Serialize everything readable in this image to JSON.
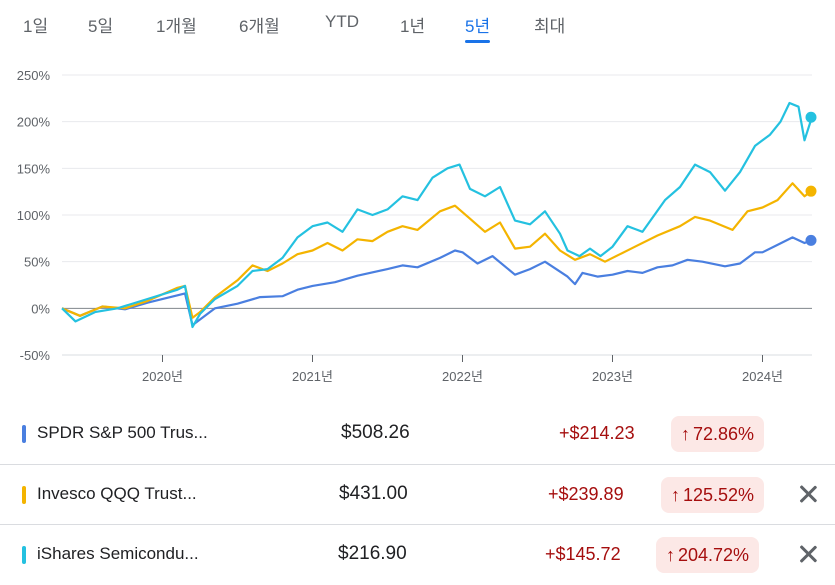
{
  "tabs": [
    {
      "label": "1일"
    },
    {
      "label": "5일"
    },
    {
      "label": "1개월"
    },
    {
      "label": "6개월"
    },
    {
      "label": "YTD"
    },
    {
      "label": "1년"
    },
    {
      "label": "5년",
      "active": true
    },
    {
      "label": "최대"
    }
  ],
  "chart_data": {
    "type": "line",
    "y_ticks": [
      "250%",
      "200%",
      "150%",
      "100%",
      "50%",
      "0%",
      "-50%"
    ],
    "ylim": [
      -50,
      250
    ],
    "x_ticks": [
      "2020년",
      "2021년",
      "2022년",
      "2023년",
      "2024년"
    ],
    "xlim": [
      2019.33,
      2024.33
    ],
    "series": [
      {
        "name": "SPDR S&P 500 Trus...",
        "color": "#4a7fe0",
        "end_value": 72.86,
        "points": [
          [
            2019.33,
            0
          ],
          [
            2019.45,
            -8
          ],
          [
            2019.6,
            2
          ],
          [
            2019.75,
            -1
          ],
          [
            2019.9,
            6
          ],
          [
            2020.1,
            14
          ],
          [
            2020.15,
            16
          ],
          [
            2020.2,
            -18
          ],
          [
            2020.25,
            -12
          ],
          [
            2020.35,
            0
          ],
          [
            2020.5,
            5
          ],
          [
            2020.65,
            12
          ],
          [
            2020.8,
            13
          ],
          [
            2020.9,
            20
          ],
          [
            2021.0,
            24
          ],
          [
            2021.15,
            28
          ],
          [
            2021.3,
            35
          ],
          [
            2021.5,
            42
          ],
          [
            2021.6,
            46
          ],
          [
            2021.7,
            44
          ],
          [
            2021.85,
            54
          ],
          [
            2021.95,
            62
          ],
          [
            2022.0,
            60
          ],
          [
            2022.1,
            48
          ],
          [
            2022.2,
            56
          ],
          [
            2022.35,
            36
          ],
          [
            2022.45,
            42
          ],
          [
            2022.55,
            50
          ],
          [
            2022.7,
            34
          ],
          [
            2022.75,
            26
          ],
          [
            2022.8,
            38
          ],
          [
            2022.9,
            34
          ],
          [
            2023.0,
            36
          ],
          [
            2023.1,
            40
          ],
          [
            2023.2,
            38
          ],
          [
            2023.3,
            44
          ],
          [
            2023.4,
            46
          ],
          [
            2023.5,
            52
          ],
          [
            2023.6,
            50
          ],
          [
            2023.75,
            45
          ],
          [
            2023.85,
            48
          ],
          [
            2023.95,
            60
          ],
          [
            2024.0,
            60
          ],
          [
            2024.1,
            68
          ],
          [
            2024.2,
            76
          ],
          [
            2024.28,
            70
          ],
          [
            2024.33,
            73
          ]
        ]
      },
      {
        "name": "Invesco QQQ Trust...",
        "color": "#f4b400",
        "end_value": 125.52,
        "points": [
          [
            2019.33,
            0
          ],
          [
            2019.45,
            -8
          ],
          [
            2019.6,
            2
          ],
          [
            2019.75,
            0
          ],
          [
            2019.9,
            8
          ],
          [
            2020.1,
            22
          ],
          [
            2020.15,
            24
          ],
          [
            2020.2,
            -10
          ],
          [
            2020.25,
            -4
          ],
          [
            2020.35,
            12
          ],
          [
            2020.5,
            30
          ],
          [
            2020.6,
            46
          ],
          [
            2020.7,
            40
          ],
          [
            2020.8,
            48
          ],
          [
            2020.9,
            58
          ],
          [
            2021.0,
            62
          ],
          [
            2021.1,
            70
          ],
          [
            2021.2,
            62
          ],
          [
            2021.3,
            74
          ],
          [
            2021.4,
            72
          ],
          [
            2021.5,
            82
          ],
          [
            2021.6,
            88
          ],
          [
            2021.7,
            84
          ],
          [
            2021.85,
            104
          ],
          [
            2021.95,
            110
          ],
          [
            2022.05,
            96
          ],
          [
            2022.15,
            82
          ],
          [
            2022.25,
            92
          ],
          [
            2022.35,
            64
          ],
          [
            2022.45,
            66
          ],
          [
            2022.55,
            80
          ],
          [
            2022.65,
            62
          ],
          [
            2022.75,
            52
          ],
          [
            2022.85,
            58
          ],
          [
            2022.95,
            50
          ],
          [
            2023.05,
            58
          ],
          [
            2023.15,
            66
          ],
          [
            2023.3,
            78
          ],
          [
            2023.45,
            88
          ],
          [
            2023.55,
            98
          ],
          [
            2023.65,
            94
          ],
          [
            2023.8,
            84
          ],
          [
            2023.9,
            104
          ],
          [
            2024.0,
            108
          ],
          [
            2024.1,
            116
          ],
          [
            2024.2,
            134
          ],
          [
            2024.28,
            120
          ],
          [
            2024.33,
            126
          ]
        ]
      },
      {
        "name": "iShares Semicondu...",
        "color": "#24c1e0",
        "end_value": 204.72,
        "points": [
          [
            2019.33,
            0
          ],
          [
            2019.42,
            -14
          ],
          [
            2019.55,
            -4
          ],
          [
            2019.7,
            0
          ],
          [
            2019.9,
            10
          ],
          [
            2020.1,
            20
          ],
          [
            2020.15,
            24
          ],
          [
            2020.2,
            -20
          ],
          [
            2020.25,
            -6
          ],
          [
            2020.35,
            10
          ],
          [
            2020.5,
            24
          ],
          [
            2020.6,
            40
          ],
          [
            2020.7,
            42
          ],
          [
            2020.8,
            54
          ],
          [
            2020.9,
            76
          ],
          [
            2021.0,
            88
          ],
          [
            2021.1,
            92
          ],
          [
            2021.2,
            82
          ],
          [
            2021.3,
            106
          ],
          [
            2021.4,
            100
          ],
          [
            2021.5,
            106
          ],
          [
            2021.6,
            120
          ],
          [
            2021.7,
            116
          ],
          [
            2021.8,
            140
          ],
          [
            2021.9,
            150
          ],
          [
            2021.98,
            154
          ],
          [
            2022.05,
            128
          ],
          [
            2022.15,
            120
          ],
          [
            2022.25,
            130
          ],
          [
            2022.35,
            94
          ],
          [
            2022.45,
            90
          ],
          [
            2022.55,
            104
          ],
          [
            2022.65,
            80
          ],
          [
            2022.7,
            62
          ],
          [
            2022.78,
            56
          ],
          [
            2022.85,
            64
          ],
          [
            2022.92,
            56
          ],
          [
            2023.0,
            66
          ],
          [
            2023.1,
            88
          ],
          [
            2023.2,
            82
          ],
          [
            2023.35,
            116
          ],
          [
            2023.45,
            130
          ],
          [
            2023.55,
            154
          ],
          [
            2023.65,
            146
          ],
          [
            2023.75,
            126
          ],
          [
            2023.85,
            146
          ],
          [
            2023.95,
            174
          ],
          [
            2024.05,
            186
          ],
          [
            2024.12,
            200
          ],
          [
            2024.18,
            220
          ],
          [
            2024.24,
            216
          ],
          [
            2024.28,
            180
          ],
          [
            2024.33,
            205
          ]
        ]
      }
    ]
  },
  "holdings": [
    {
      "name": "SPDR S&P 500 Trus...",
      "price": "$508.26",
      "change": "+$214.23",
      "pct": "72.86%",
      "arrow": "↑",
      "removable": false
    },
    {
      "name": "Invesco QQQ Trust...",
      "price": "$431.00",
      "change": "+$239.89",
      "pct": "125.52%",
      "arrow": "↑",
      "removable": true
    },
    {
      "name": "iShares Semicondu...",
      "price": "$216.90",
      "change": "+$145.72",
      "pct": "204.72%",
      "arrow": "↑",
      "removable": true
    }
  ],
  "icons": {
    "remove": "close-icon",
    "gain": "arrow-up-icon"
  }
}
